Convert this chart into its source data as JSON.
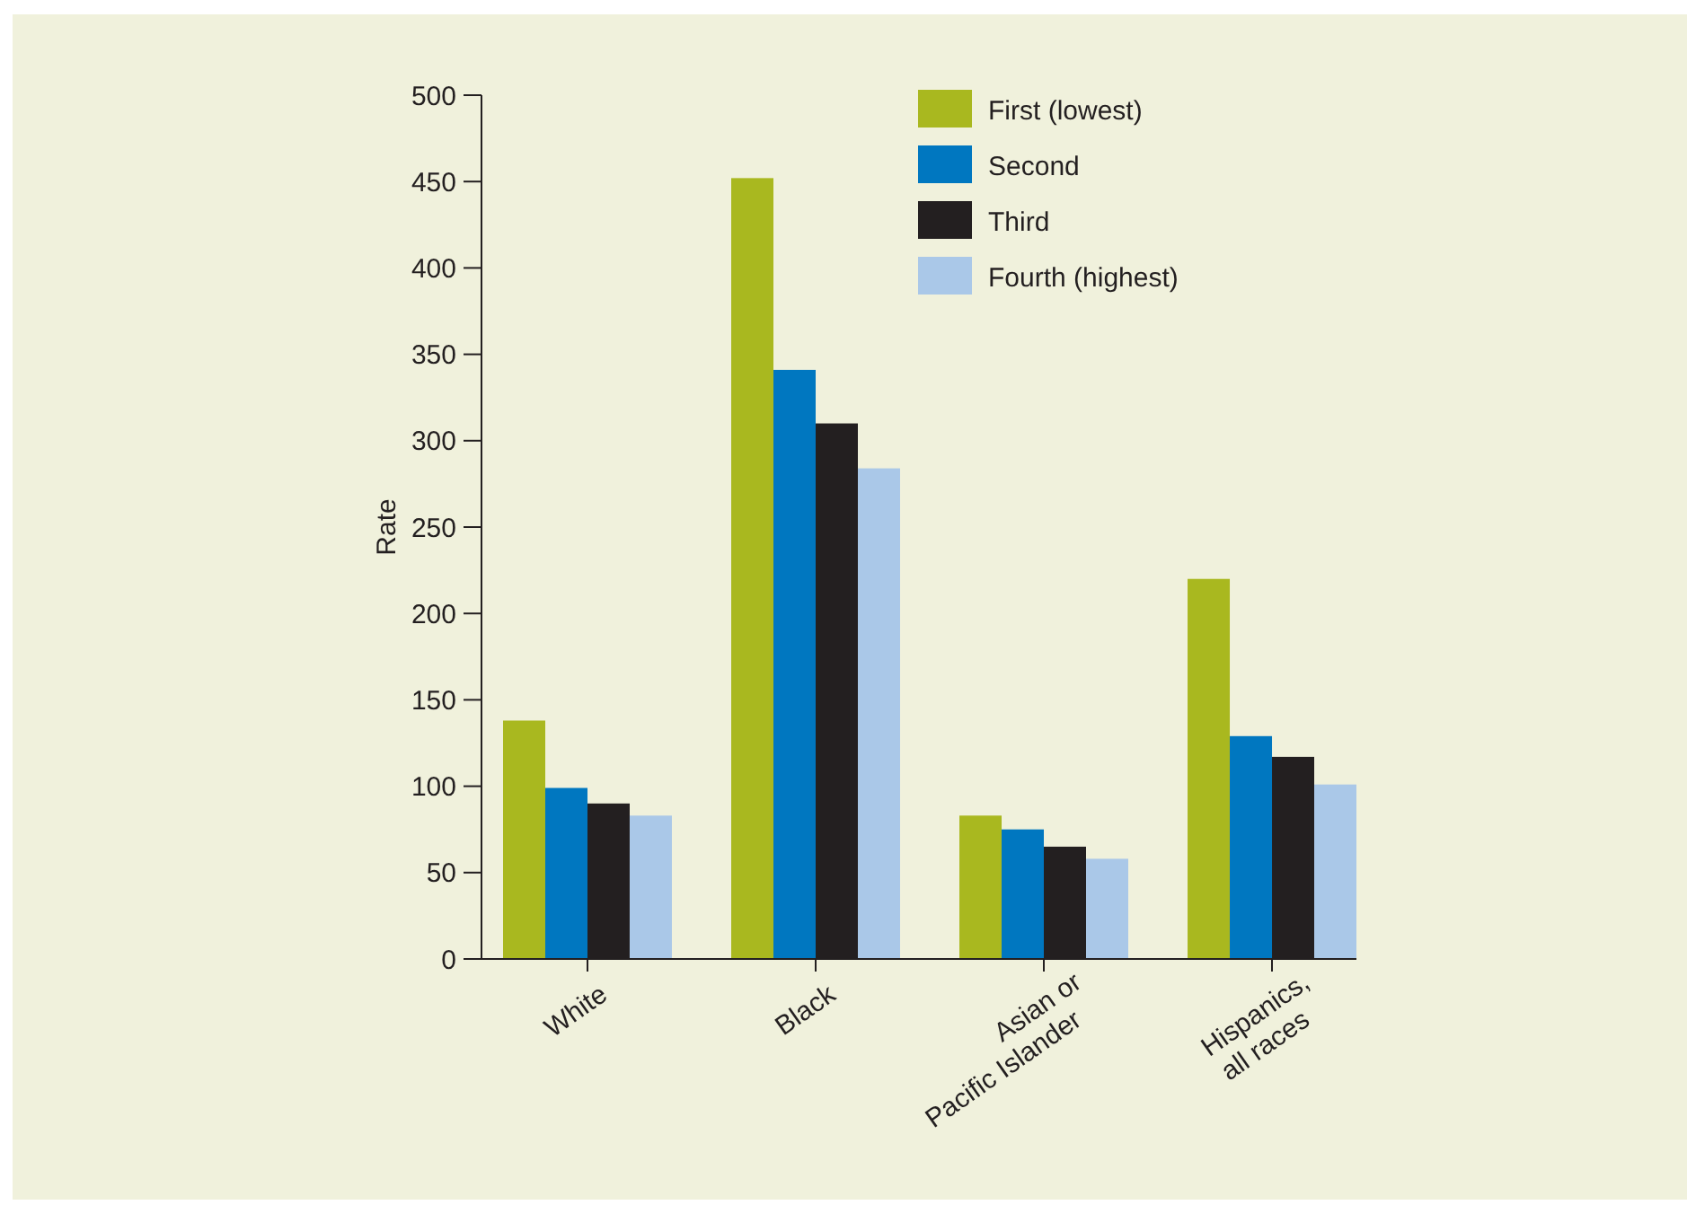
{
  "chart_data": {
    "type": "bar",
    "ylabel": "Rate",
    "categories": [
      "White",
      "Black",
      "Asian or\nPacific Islander",
      "Hispanics,\nall races"
    ],
    "series": [
      {
        "name": "First (lowest)",
        "color": "#a9b81f",
        "values": [
          138,
          452,
          83,
          220
        ]
      },
      {
        "name": "Second",
        "color": "#0077c0",
        "values": [
          99,
          341,
          75,
          129
        ]
      },
      {
        "name": "Third",
        "color": "#231f20",
        "values": [
          90,
          310,
          65,
          117
        ]
      },
      {
        "name": "Fourth (highest)",
        "color": "#aac8e8",
        "values": [
          83,
          284,
          58,
          101
        ]
      }
    ],
    "ylim": [
      0,
      500
    ],
    "yticks": [
      0,
      50,
      100,
      150,
      200,
      250,
      300,
      350,
      400,
      450,
      500
    ],
    "grid": false,
    "legend": "top right"
  }
}
